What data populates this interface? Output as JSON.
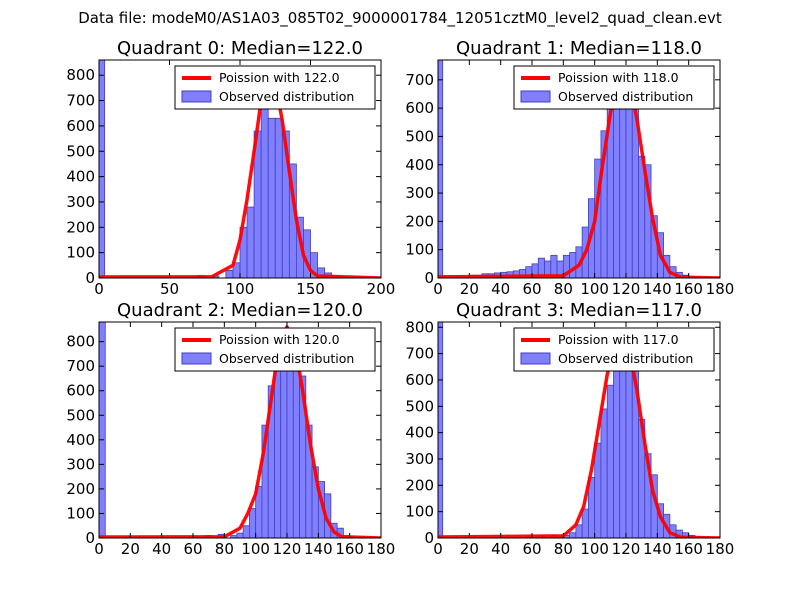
{
  "figure": {
    "suptitle": "Data file: modeM0/AS1A03_085T02_9000001784_12051cztM0_level2_quad_clean.evt"
  },
  "colors": {
    "bar_fill": "#8080ff",
    "bar_edge": "#3f3fbf",
    "fit_line": "#ff0000",
    "axis": "#000000"
  },
  "chart_data": [
    {
      "type": "bar",
      "title": "Quadrant 0: Median=122.0",
      "xlim": [
        0,
        200
      ],
      "ylim": [
        0,
        860
      ],
      "xticks": [
        0,
        50,
        100,
        150,
        200
      ],
      "yticks": [
        0,
        100,
        200,
        300,
        400,
        500,
        600,
        700,
        800
      ],
      "legend": {
        "position": "top-right",
        "entries": [
          "Poission with 122.0",
          "Observed distribution"
        ]
      },
      "bins": [
        [
          0,
          4,
          860
        ],
        [
          70,
          75,
          10
        ],
        [
          80,
          85,
          8
        ],
        [
          90,
          95,
          30
        ],
        [
          95,
          100,
          60
        ],
        [
          100,
          105,
          200
        ],
        [
          105,
          110,
          280
        ],
        [
          110,
          115,
          580
        ],
        [
          115,
          120,
          720
        ],
        [
          120,
          125,
          630
        ],
        [
          125,
          130,
          630
        ],
        [
          130,
          135,
          580
        ],
        [
          135,
          140,
          450
        ],
        [
          140,
          145,
          240
        ],
        [
          145,
          150,
          190
        ],
        [
          150,
          155,
          100
        ],
        [
          155,
          160,
          40
        ],
        [
          160,
          165,
          20
        ],
        [
          165,
          170,
          10
        ],
        [
          180,
          185,
          5
        ]
      ],
      "poisson": {
        "mean": 122,
        "curve": [
          [
            0,
            4
          ],
          [
            80,
            5
          ],
          [
            95,
            50
          ],
          [
            100,
            150
          ],
          [
            105,
            310
          ],
          [
            110,
            500
          ],
          [
            115,
            700
          ],
          [
            120,
            820
          ],
          [
            125,
            770
          ],
          [
            130,
            620
          ],
          [
            135,
            420
          ],
          [
            140,
            230
          ],
          [
            145,
            90
          ],
          [
            150,
            30
          ],
          [
            155,
            8
          ],
          [
            200,
            0
          ]
        ]
      }
    },
    {
      "type": "bar",
      "title": "Quadrant 1: Median=118.0",
      "xlim": [
        0,
        180
      ],
      "ylim": [
        0,
        770
      ],
      "xticks": [
        0,
        20,
        40,
        60,
        80,
        100,
        120,
        140,
        160,
        180
      ],
      "yticks": [
        0,
        100,
        200,
        300,
        400,
        500,
        600,
        700
      ],
      "legend": {
        "position": "top-right",
        "entries": [
          "Poission with 118.0",
          "Observed distribution"
        ]
      },
      "bins": [
        [
          0,
          3,
          770
        ],
        [
          20,
          24,
          10
        ],
        [
          24,
          28,
          10
        ],
        [
          28,
          32,
          15
        ],
        [
          32,
          36,
          15
        ],
        [
          36,
          40,
          18
        ],
        [
          40,
          44,
          20
        ],
        [
          44,
          48,
          22
        ],
        [
          48,
          52,
          25
        ],
        [
          52,
          56,
          30
        ],
        [
          56,
          60,
          40
        ],
        [
          60,
          64,
          50
        ],
        [
          64,
          68,
          70
        ],
        [
          68,
          72,
          60
        ],
        [
          72,
          76,
          80
        ],
        [
          76,
          80,
          60
        ],
        [
          80,
          84,
          80
        ],
        [
          84,
          88,
          90
        ],
        [
          88,
          92,
          110
        ],
        [
          92,
          96,
          180
        ],
        [
          96,
          100,
          280
        ],
        [
          100,
          104,
          420
        ],
        [
          104,
          108,
          520
        ],
        [
          108,
          112,
          600
        ],
        [
          112,
          116,
          730
        ],
        [
          116,
          120,
          700
        ],
        [
          120,
          124,
          620
        ],
        [
          124,
          128,
          600
        ],
        [
          128,
          132,
          430
        ],
        [
          132,
          136,
          400
        ],
        [
          136,
          140,
          220
        ],
        [
          140,
          144,
          160
        ],
        [
          144,
          148,
          80
        ],
        [
          148,
          152,
          40
        ],
        [
          152,
          156,
          20
        ],
        [
          156,
          160,
          10
        ]
      ],
      "poisson": {
        "mean": 118,
        "curve": [
          [
            0,
            4
          ],
          [
            80,
            8
          ],
          [
            90,
            45
          ],
          [
            95,
            100
          ],
          [
            100,
            200
          ],
          [
            105,
            400
          ],
          [
            110,
            580
          ],
          [
            115,
            720
          ],
          [
            118,
            740
          ],
          [
            122,
            700
          ],
          [
            127,
            560
          ],
          [
            132,
            380
          ],
          [
            137,
            210
          ],
          [
            142,
            80
          ],
          [
            148,
            20
          ],
          [
            155,
            3
          ],
          [
            180,
            0
          ]
        ]
      }
    },
    {
      "type": "bar",
      "title": "Quadrant 2: Median=120.0",
      "xlim": [
        0,
        180
      ],
      "ylim": [
        0,
        880
      ],
      "xticks": [
        0,
        20,
        40,
        60,
        80,
        100,
        120,
        140,
        160,
        180
      ],
      "yticks": [
        0,
        100,
        200,
        300,
        400,
        500,
        600,
        700,
        800
      ],
      "legend": {
        "position": "top-right",
        "entries": [
          "Poission with 120.0",
          "Observed distribution"
        ]
      },
      "bins": [
        [
          0,
          4,
          880
        ],
        [
          68,
          72,
          10
        ],
        [
          76,
          80,
          15
        ],
        [
          84,
          88,
          10
        ],
        [
          88,
          92,
          20
        ],
        [
          92,
          96,
          50
        ],
        [
          96,
          100,
          120
        ],
        [
          100,
          104,
          210
        ],
        [
          104,
          108,
          460
        ],
        [
          108,
          112,
          620
        ],
        [
          112,
          116,
          700
        ],
        [
          116,
          120,
          770
        ],
        [
          120,
          124,
          800
        ],
        [
          124,
          128,
          780
        ],
        [
          128,
          132,
          660
        ],
        [
          132,
          136,
          460
        ],
        [
          136,
          140,
          290
        ],
        [
          140,
          144,
          230
        ],
        [
          144,
          148,
          180
        ],
        [
          148,
          152,
          60
        ],
        [
          152,
          156,
          40
        ],
        [
          156,
          160,
          10
        ],
        [
          160,
          164,
          5
        ]
      ],
      "poisson": {
        "mean": 120,
        "curve": [
          [
            0,
            4
          ],
          [
            80,
            5
          ],
          [
            90,
            40
          ],
          [
            95,
            100
          ],
          [
            100,
            180
          ],
          [
            105,
            350
          ],
          [
            110,
            570
          ],
          [
            115,
            790
          ],
          [
            120,
            860
          ],
          [
            125,
            790
          ],
          [
            130,
            600
          ],
          [
            135,
            380
          ],
          [
            140,
            200
          ],
          [
            145,
            80
          ],
          [
            150,
            25
          ],
          [
            155,
            5
          ],
          [
            180,
            0
          ]
        ]
      }
    },
    {
      "type": "bar",
      "title": "Quadrant 3: Median=117.0",
      "xlim": [
        0,
        180
      ],
      "ylim": [
        0,
        820
      ],
      "xticks": [
        0,
        20,
        40,
        60,
        80,
        100,
        120,
        140,
        160,
        180
      ],
      "yticks": [
        0,
        100,
        200,
        300,
        400,
        500,
        600,
        700,
        800
      ],
      "legend": {
        "position": "top-right",
        "entries": [
          "Poission with 117.0",
          "Observed distribution"
        ]
      },
      "bins": [
        [
          0,
          3,
          820
        ],
        [
          56,
          60,
          5
        ],
        [
          64,
          68,
          8
        ],
        [
          72,
          76,
          10
        ],
        [
          80,
          84,
          10
        ],
        [
          84,
          88,
          20
        ],
        [
          88,
          92,
          50
        ],
        [
          92,
          96,
          110
        ],
        [
          96,
          100,
          230
        ],
        [
          100,
          104,
          360
        ],
        [
          104,
          108,
          490
        ],
        [
          108,
          112,
          580
        ],
        [
          112,
          116,
          740
        ],
        [
          116,
          120,
          690
        ],
        [
          120,
          124,
          650
        ],
        [
          124,
          128,
          640
        ],
        [
          128,
          132,
          450
        ],
        [
          132,
          136,
          320
        ],
        [
          136,
          140,
          240
        ],
        [
          140,
          144,
          130
        ],
        [
          144,
          148,
          90
        ],
        [
          148,
          152,
          50
        ],
        [
          152,
          156,
          30
        ],
        [
          156,
          160,
          20
        ],
        [
          160,
          164,
          10
        ],
        [
          164,
          168,
          5
        ]
      ],
      "poisson": {
        "mean": 117,
        "curve": [
          [
            0,
            4
          ],
          [
            80,
            8
          ],
          [
            88,
            50
          ],
          [
            93,
            120
          ],
          [
            98,
            260
          ],
          [
            103,
            440
          ],
          [
            108,
            620
          ],
          [
            113,
            740
          ],
          [
            117,
            780
          ],
          [
            122,
            720
          ],
          [
            127,
            560
          ],
          [
            132,
            360
          ],
          [
            137,
            180
          ],
          [
            142,
            80
          ],
          [
            148,
            20
          ],
          [
            155,
            3
          ],
          [
            180,
            0
          ]
        ]
      }
    }
  ]
}
